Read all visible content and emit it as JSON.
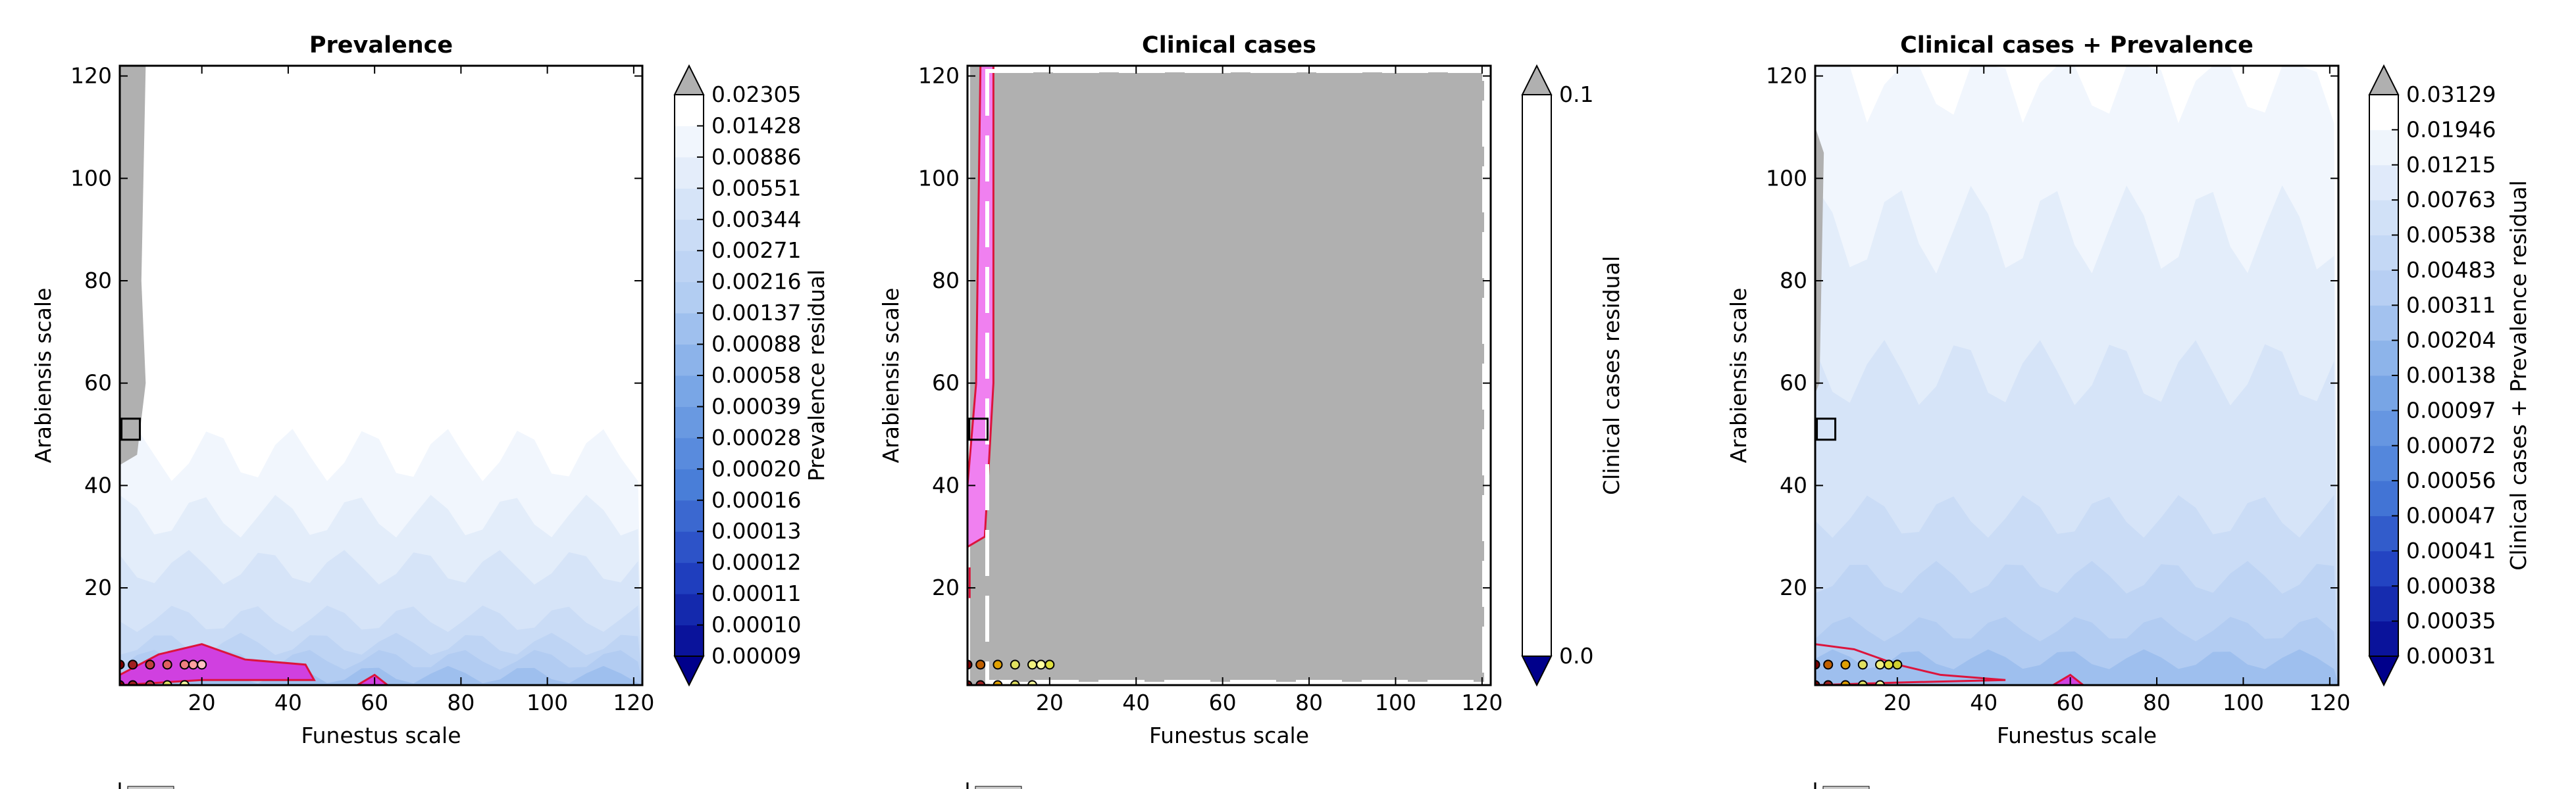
{
  "chart_data": [
    {
      "type": "contour",
      "title": "Prevalence",
      "xlabel": "Funestus scale",
      "ylabel": "Arabiensis scale",
      "colorbar_label": "Prevalence residual",
      "xlim": [
        1,
        122
      ],
      "ylim": [
        1,
        122
      ],
      "xticks": [
        20,
        40,
        60,
        80,
        100,
        120
      ],
      "yticks": [
        20,
        40,
        60,
        80,
        100,
        120
      ],
      "colorbar_levels": [
        "0.00009",
        "0.00010",
        "0.00011",
        "0.00012",
        "0.00013",
        "0.00016",
        "0.00020",
        "0.00028",
        "0.00039",
        "0.00058",
        "0.00088",
        "0.00137",
        "0.00216",
        "0.00271",
        "0.00344",
        "0.00551",
        "0.00886",
        "0.01428",
        "0.02305"
      ],
      "marker_square": {
        "x": 2,
        "y": 51
      },
      "points": [
        {
          "x": 1,
          "y": 1,
          "color": "#800000"
        },
        {
          "x": 4,
          "y": 1,
          "color": "#a02020"
        },
        {
          "x": 8,
          "y": 1,
          "color": "#c04040"
        },
        {
          "x": 12,
          "y": 1,
          "color": "#e0e060"
        },
        {
          "x": 16,
          "y": 1,
          "color": "#ffffa0"
        },
        {
          "x": 1,
          "y": 5,
          "color": "#800000"
        },
        {
          "x": 4,
          "y": 5,
          "color": "#a02020"
        },
        {
          "x": 8,
          "y": 5,
          "color": "#c04040"
        },
        {
          "x": 12,
          "y": 5,
          "color": "#e06060"
        },
        {
          "x": 16,
          "y": 5,
          "color": "#f08080"
        },
        {
          "x": 18,
          "y": 5,
          "color": "#ffa0a0"
        },
        {
          "x": 20,
          "y": 5,
          "color": "#ffc0c0"
        }
      ],
      "legend_text": ""
    },
    {
      "type": "contour",
      "title": "Clinical cases",
      "xlabel": "Funestus scale",
      "ylabel": "Arabiensis scale",
      "colorbar_label": "Clinical cases residual",
      "xlim": [
        1,
        122
      ],
      "ylim": [
        1,
        122
      ],
      "xticks": [
        20,
        40,
        60,
        80,
        100,
        120
      ],
      "yticks": [
        20,
        40,
        60,
        80,
        100,
        120
      ],
      "colorbar_levels": [
        "0.0",
        "0.1"
      ],
      "marker_square": {
        "x": 2,
        "y": 51
      },
      "points": [
        {
          "x": 1,
          "y": 1,
          "color": "#800000"
        },
        {
          "x": 4,
          "y": 1,
          "color": "#a02020"
        },
        {
          "x": 8,
          "y": 1,
          "color": "#e0a000"
        },
        {
          "x": 12,
          "y": 1,
          "color": "#e0e060"
        },
        {
          "x": 16,
          "y": 1,
          "color": "#ffffa0"
        },
        {
          "x": 1,
          "y": 5,
          "color": "#800000"
        },
        {
          "x": 4,
          "y": 5,
          "color": "#c06000"
        },
        {
          "x": 8,
          "y": 5,
          "color": "#e0a000"
        },
        {
          "x": 12,
          "y": 5,
          "color": "#e0e060"
        },
        {
          "x": 16,
          "y": 5,
          "color": "#f0f080"
        },
        {
          "x": 18,
          "y": 5,
          "color": "#ffffa0"
        },
        {
          "x": 20,
          "y": 5,
          "color": "#e0e040"
        }
      ],
      "legend_text": ""
    },
    {
      "type": "contour",
      "title": "Clinical cases + Prevalence",
      "xlabel": "Funestus scale",
      "ylabel": "Arabiensis scale",
      "colorbar_label": "Clinical cases + Prevalence residual",
      "xlim": [
        1,
        122
      ],
      "ylim": [
        1,
        122
      ],
      "xticks": [
        20,
        40,
        60,
        80,
        100,
        120
      ],
      "yticks": [
        20,
        40,
        60,
        80,
        100,
        120
      ],
      "colorbar_levels": [
        "0.00031",
        "0.00035",
        "0.00038",
        "0.00041",
        "0.00047",
        "0.00056",
        "0.00072",
        "0.00097",
        "0.00138",
        "0.00204",
        "0.00311",
        "0.00483",
        "0.00538",
        "0.00763",
        "0.01215",
        "0.01946",
        "0.03129"
      ],
      "marker_square": {
        "x": 2,
        "y": 51
      },
      "points": [
        {
          "x": 1,
          "y": 1,
          "color": "#800000"
        },
        {
          "x": 4,
          "y": 1,
          "color": "#a02020"
        },
        {
          "x": 8,
          "y": 1,
          "color": "#e0a000"
        },
        {
          "x": 12,
          "y": 1,
          "color": "#e0e060"
        },
        {
          "x": 16,
          "y": 1,
          "color": "#ffffa0"
        },
        {
          "x": 1,
          "y": 5,
          "color": "#800000"
        },
        {
          "x": 4,
          "y": 5,
          "color": "#c06000"
        },
        {
          "x": 8,
          "y": 5,
          "color": "#e0a000"
        },
        {
          "x": 12,
          "y": 5,
          "color": "#e0e060"
        },
        {
          "x": 16,
          "y": 5,
          "color": "#f0f080"
        },
        {
          "x": 18,
          "y": 5,
          "color": "#e0e040"
        },
        {
          "x": 20,
          "y": 5,
          "color": "#d0d030"
        }
      ],
      "legend_text": ""
    }
  ],
  "colors": {
    "over": "#b0b0b0",
    "under": "#00008b",
    "band_top": "#ffffff",
    "band_mid": "#cfdff7",
    "band_low": "#7aa7e6",
    "highlight": "#d040e0",
    "highlight_edge": "#dc143c"
  }
}
